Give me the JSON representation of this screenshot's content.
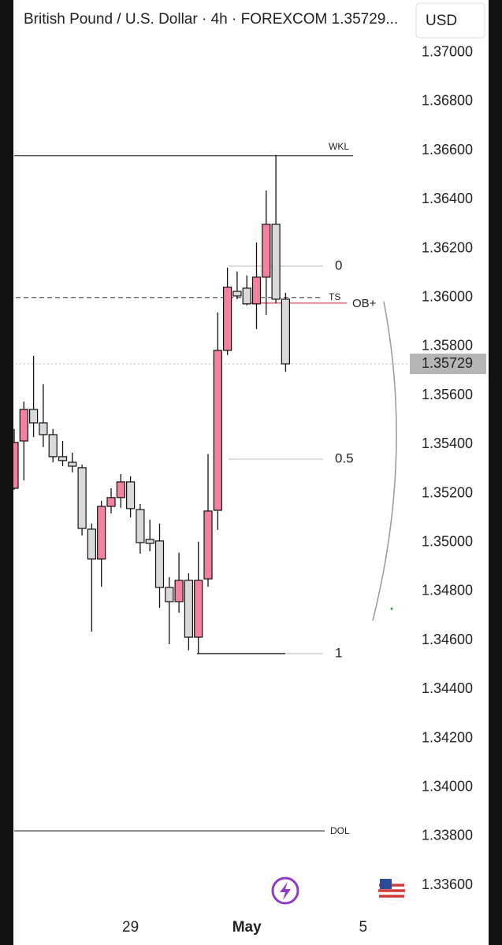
{
  "chart_data": {
    "type": "candlestick",
    "title": "British Pound / U.S. Dollar · 4h · FOREXCOM  1.35729...",
    "currency": "USD",
    "categories": [
      null,
      null,
      null,
      null,
      null,
      null,
      null,
      null,
      null,
      null,
      null,
      null,
      "29",
      null,
      null,
      null,
      null,
      null,
      null,
      null,
      null,
      null,
      null,
      null,
      "May",
      null,
      null,
      null,
      null,
      null,
      null,
      null,
      null,
      null,
      null,
      null,
      "5"
    ],
    "open": [
      1.35221,
      1.35414,
      1.35543,
      1.35488,
      1.3544,
      1.3535,
      1.35327,
      1.35305,
      1.35054,
      1.34932,
      1.35147,
      1.35183,
      1.35247,
      1.35134,
      1.35012,
      1.35006,
      1.34816,
      1.34758,
      1.34845,
      1.34613,
      1.34851,
      1.35131,
      1.35784,
      1.36025,
      1.36038,
      1.35974,
      1.36083,
      1.36299,
      1.35993,
      null,
      null,
      null,
      null,
      null,
      null,
      null,
      null
    ],
    "high": [
      1.35463,
      1.35575,
      1.35762,
      1.35646,
      1.35463,
      1.35414,
      1.35366,
      1.35318,
      1.35077,
      1.3517,
      1.35221,
      1.35279,
      1.3527,
      1.35157,
      1.35093,
      1.35077,
      1.34858,
      1.34958,
      1.34874,
      1.35003,
      1.3536,
      1.35939,
      1.36122,
      1.36106,
      1.3609,
      1.36225,
      1.36437,
      1.36582,
      1.36019,
      null,
      null,
      null,
      null,
      null,
      null,
      null,
      null
    ],
    "low": [
      1.35215,
      1.35253,
      1.3543,
      1.35389,
      1.35327,
      1.35311,
      1.35286,
      1.35028,
      1.34636,
      1.34819,
      1.35118,
      1.35141,
      1.35102,
      1.34954,
      1.34964,
      1.34732,
      1.34584,
      1.34713,
      1.34559,
      1.34546,
      1.34819,
      1.35051,
      1.35765,
      1.35993,
      1.35968,
      1.35871,
      1.35929,
      1.35977,
      1.35697,
      null,
      null,
      null,
      null,
      null,
      null,
      null,
      null
    ],
    "close": [
      1.35408,
      1.35543,
      1.35488,
      1.3544,
      1.3535,
      1.35334,
      1.35311,
      1.35057,
      1.34932,
      1.35147,
      1.35183,
      1.35247,
      1.35138,
      1.34999,
      1.34996,
      1.34816,
      1.34758,
      1.34845,
      1.34613,
      1.34845,
      1.35128,
      1.35784,
      1.36042,
      1.36006,
      1.35974,
      1.36083,
      1.36299,
      1.35993,
      1.35729,
      null,
      null,
      null,
      null,
      null,
      null,
      null,
      null
    ],
    "up_color": "#f4829f",
    "down_color": "#d9d9d9",
    "ylim": [
      1.3352,
      1.3707
    ],
    "yticks": [
      {
        "value": 1.336,
        "label": "1.33600"
      },
      {
        "value": 1.338,
        "label": "1.33800"
      },
      {
        "value": 1.34,
        "label": "1.34000"
      },
      {
        "value": 1.342,
        "label": "1.34200"
      },
      {
        "value": 1.344,
        "label": "1.34400"
      },
      {
        "value": 1.346,
        "label": "1.34600"
      },
      {
        "value": 1.348,
        "label": "1.34800"
      },
      {
        "value": 1.35,
        "label": "1.35000"
      },
      {
        "value": 1.352,
        "label": "1.35200"
      },
      {
        "value": 1.354,
        "label": "1.35400"
      },
      {
        "value": 1.356,
        "label": "1.35600"
      },
      {
        "value": 1.358,
        "label": "1.35800"
      },
      {
        "value": 1.36,
        "label": "1.36000"
      },
      {
        "value": 1.362,
        "label": "1.36200"
      },
      {
        "value": 1.364,
        "label": "1.36400"
      },
      {
        "value": 1.366,
        "label": "1.36600"
      },
      {
        "value": 1.368,
        "label": "1.36800"
      },
      {
        "value": 1.37,
        "label": "1.37000"
      }
    ],
    "levels": [
      {
        "label": "WKL",
        "value": 1.36579,
        "color": "#555555"
      },
      {
        "label": "TS",
        "value": 1.36,
        "color": "#555555"
      },
      {
        "label": "OB+",
        "value": 1.35977,
        "color": "#d9485f"
      },
      {
        "label": "DOL",
        "value": 1.33822,
        "color": "#555555"
      }
    ],
    "fib": [
      {
        "label": "0",
        "value": 1.36128
      },
      {
        "label": "0.5",
        "value": 1.3534
      },
      {
        "label": "1",
        "value": 1.34546
      }
    ]
  }
}
